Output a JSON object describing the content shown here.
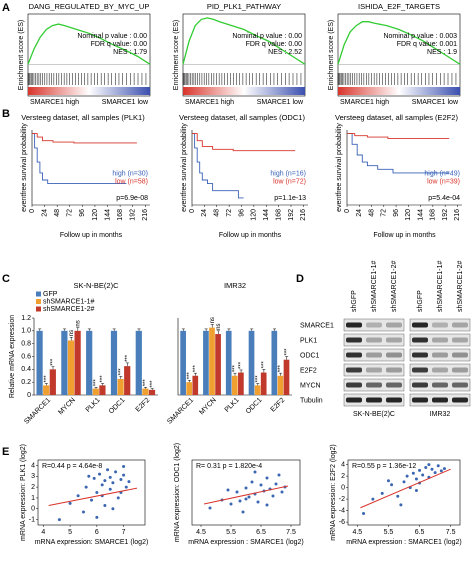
{
  "panel_labels": [
    "A",
    "B",
    "C",
    "D",
    "E"
  ],
  "chart_data": [
    {
      "type": "line",
      "title": "DANG_REGULATED_BY_MYC_UP",
      "y_label": "Enrichment score (ES)",
      "annotations": [
        "Nominal p value : 0.00",
        "FDR q value: 0.00",
        "NES : 1.79"
      ],
      "phenotypes": [
        "SMARCE1 high",
        "SMARCE1 low"
      ],
      "color": "#33cc33",
      "x": [
        0,
        5,
        10,
        15,
        20,
        25,
        30,
        40,
        50,
        60,
        70,
        80,
        90,
        100
      ],
      "values": [
        0,
        0.2,
        0.35,
        0.45,
        0.5,
        0.52,
        0.5,
        0.45,
        0.4,
        0.33,
        0.25,
        0.18,
        0.1,
        0
      ],
      "xlim": [
        0,
        100
      ],
      "ylim": [
        -0.1,
        0.65
      ]
    },
    {
      "type": "line",
      "title": "PID_PLK1_PATHWAY",
      "y_label": "Enrichment score (ES)",
      "annotations": [
        "Nominal p value : 0.00",
        "FDR q value: 0.00",
        "NES : 2.52"
      ],
      "phenotypes": [
        "SMARCE1 high",
        "SMARCE1 low"
      ],
      "color": "#33cc33",
      "x": [
        0,
        5,
        10,
        15,
        20,
        25,
        30,
        40,
        50,
        60,
        70,
        80,
        90,
        100
      ],
      "values": [
        0,
        0.3,
        0.5,
        0.58,
        0.6,
        0.58,
        0.55,
        0.5,
        0.45,
        0.37,
        0.3,
        0.2,
        0.1,
        0
      ],
      "xlim": [
        0,
        100
      ],
      "ylim": [
        -0.1,
        0.65
      ]
    },
    {
      "type": "line",
      "title": "ISHIDA_E2F_TARGETS",
      "y_label": "Enrichment score (ES)",
      "annotations": [
        "Nominal p value : 0.003",
        "FDR q value: 0.001",
        "NES : 1.9"
      ],
      "phenotypes": [
        "SMARCE1 high",
        "SMARCE1 low"
      ],
      "color": "#33cc33",
      "x": [
        0,
        5,
        10,
        15,
        20,
        25,
        30,
        40,
        50,
        60,
        70,
        80,
        90,
        100
      ],
      "values": [
        0,
        0.25,
        0.42,
        0.5,
        0.55,
        0.55,
        0.53,
        0.5,
        0.45,
        0.38,
        0.3,
        0.2,
        0.1,
        0
      ],
      "xlim": [
        0,
        100
      ],
      "ylim": [
        -0.1,
        0.65
      ]
    },
    {
      "type": "step",
      "title": "Versteeg dataset, all samples (PLK1)",
      "y_label": "eventfree survival probability",
      "x_label": "Follow up in months",
      "annotation": "p=6.9e-08",
      "xlim": [
        0,
        225
      ],
      "ylim": [
        0,
        1.05
      ],
      "xticks": [
        0,
        24,
        48,
        72,
        96,
        120,
        144,
        168,
        192,
        216
      ],
      "series": [
        {
          "name": "high (n=30)",
          "color": "#3a62b8",
          "x": [
            0,
            5,
            10,
            15,
            20,
            30,
            40,
            60,
            180
          ],
          "values": [
            1,
            0.8,
            0.6,
            0.45,
            0.35,
            0.3,
            0.3,
            0.3,
            0.3
          ]
        },
        {
          "name": "low (n=58)",
          "color": "#d9342b",
          "x": [
            0,
            10,
            20,
            40,
            80,
            200
          ],
          "values": [
            1,
            0.95,
            0.9,
            0.88,
            0.87,
            0.87
          ]
        }
      ]
    },
    {
      "type": "step",
      "title": "Versteeg dataset, all samples (ODC1)",
      "y_label": "eventfree survival probability",
      "x_label": "Follow up in months",
      "annotation": "p=1.1e-13",
      "xlim": [
        0,
        225
      ],
      "ylim": [
        0,
        1.05
      ],
      "xticks": [
        0,
        24,
        48,
        72,
        96,
        120,
        144,
        168,
        192,
        216
      ],
      "series": [
        {
          "name": "high (n=16)",
          "color": "#3a62b8",
          "x": [
            0,
            5,
            10,
            15,
            20,
            30,
            40,
            60,
            90,
            100
          ],
          "values": [
            1,
            0.8,
            0.6,
            0.45,
            0.35,
            0.3,
            0.2,
            0.2,
            0.1,
            0.1
          ]
        },
        {
          "name": "low (n=72)",
          "color": "#d9342b",
          "x": [
            0,
            10,
            20,
            40,
            80,
            200
          ],
          "values": [
            1,
            0.9,
            0.82,
            0.78,
            0.76,
            0.76
          ]
        }
      ]
    },
    {
      "type": "step",
      "title": "Versteeg dataset, all samples (E2F2)",
      "y_label": "eventfree survival probability",
      "x_label": "Follow up in months",
      "annotation": "p=5.4e-04",
      "xlim": [
        0,
        225
      ],
      "ylim": [
        0,
        1.05
      ],
      "xticks": [
        0,
        24,
        48,
        72,
        96,
        120,
        144,
        168,
        192,
        216
      ],
      "series": [
        {
          "name": "high (n=49)",
          "color": "#3a62b8",
          "x": [
            0,
            10,
            20,
            30,
            40,
            60,
            90,
            200
          ],
          "values": [
            1,
            0.85,
            0.7,
            0.6,
            0.55,
            0.5,
            0.45,
            0.45
          ]
        },
        {
          "name": "low (n=39)",
          "color": "#d9342b",
          "x": [
            0,
            15,
            40,
            80,
            200
          ],
          "values": [
            1,
            0.97,
            0.95,
            0.93,
            0.93
          ]
        }
      ]
    },
    {
      "type": "bar",
      "title": "SK-N-BE(2)C",
      "y_label": "Relative mRNA expression",
      "legend": "top-left",
      "categories": [
        "SMARCE1",
        "MYCN",
        "PLK1",
        "ODC1",
        "E2F2"
      ],
      "ylim": [
        0,
        1.2
      ],
      "yticks": [
        0,
        0.2,
        0.4,
        0.6,
        0.8,
        {
          "value": 1,
          "label": "1.0"
        },
        1.2
      ],
      "series": [
        {
          "name": "GFP",
          "color": "#4a7ebb",
          "values": [
            1,
            1,
            1,
            1,
            1
          ],
          "errors": [
            0.03,
            0.03,
            0.03,
            0.03,
            0.03
          ],
          "significance": [
            null,
            null,
            null,
            null,
            null
          ]
        },
        {
          "name": "shSMARCE1-1#",
          "color": "#f0a030",
          "values": [
            0.15,
            0.85,
            0.1,
            0.25,
            0.1
          ],
          "errors": [
            0.03,
            0.05,
            0.02,
            0.04,
            0.02
          ],
          "significance": [
            "***",
            "ns",
            "***",
            "***",
            "***"
          ]
        },
        {
          "name": "shSMARCE1-2#",
          "color": "#c0392b",
          "values": [
            0.4,
            1.0,
            0.15,
            0.45,
            0.08
          ],
          "errors": [
            0.04,
            0.05,
            0.03,
            0.05,
            0.02
          ],
          "significance": [
            "***",
            "ns",
            "***",
            "***",
            "***"
          ]
        }
      ]
    },
    {
      "type": "bar",
      "title": "IMR32",
      "categories": [
        "SMARCE1",
        "MYCN",
        "PLK1",
        "ODC1",
        "E2F2"
      ],
      "ylim": [
        0,
        1.2
      ],
      "series": [
        {
          "color": "#4a7ebb",
          "values": [
            1,
            1,
            1,
            1,
            1
          ],
          "errors": [
            0.03,
            0.03,
            0.03,
            0.03,
            0.03
          ],
          "significance": [
            null,
            null,
            null,
            null,
            null
          ]
        },
        {
          "color": "#f0a030",
          "values": [
            0.2,
            1.05,
            0.3,
            0.15,
            0.3
          ],
          "errors": [
            0.03,
            0.05,
            0.04,
            0.03,
            0.04
          ],
          "significance": [
            "***",
            "ns",
            "***",
            "***",
            "***"
          ]
        },
        {
          "color": "#c0392b",
          "values": [
            0.3,
            0.95,
            0.35,
            0.35,
            0.55
          ],
          "errors": [
            0.04,
            0.05,
            0.04,
            0.05,
            0.05
          ],
          "significance": [
            "***",
            "ns",
            "***",
            "***",
            "***"
          ]
        }
      ]
    },
    {
      "type": "scatter",
      "annotation": "R=0.44    p = 4.64e-8",
      "x_label": "mRNA expression: SMARCE1 (log2)",
      "y_label": "mRNA expression: PLK1 (log2)",
      "color": "#3b66b0",
      "fit_color": "#d9342b",
      "xlim": [
        3.8,
        7.8
      ],
      "ylim": [
        -1.5,
        4.5
      ],
      "xticks": [
        4,
        5,
        6,
        7
      ],
      "yticks": [
        -1,
        0,
        1,
        2,
        3,
        4
      ],
      "x": [
        5.0,
        5.3,
        5.6,
        5.8,
        5.9,
        6.0,
        6.1,
        6.2,
        6.3,
        6.3,
        6.4,
        6.5,
        6.5,
        6.6,
        6.7,
        6.8,
        6.9,
        7.0,
        7.1,
        7.2,
        5.5,
        6.0,
        6.6,
        6.9,
        4.6,
        5.7,
        6.2,
        7.0
      ],
      "values": [
        0.5,
        1.2,
        2.0,
        0.8,
        2.8,
        1.5,
        3.2,
        2.2,
        0.3,
        2.6,
        3.6,
        1.8,
        2.9,
        2.4,
        3.4,
        1.0,
        2.7,
        3.1,
        2.0,
        2.5,
        -0.3,
        -0.8,
        0.0,
        1.5,
        -1.0,
        3.0,
        1.2,
        3.9
      ],
      "fit": {
        "x": [
          4.2,
          7.5
        ],
        "y": [
          0.3,
          1.9
        ]
      }
    },
    {
      "type": "scatter",
      "annotation": "R= 0.31    p = 1.820e-4",
      "x_label": "mRNA expression : SMARCE1 (log2)",
      "y_label": "mRNA expression: ODC1 (log2)",
      "color": "#3b66b0",
      "fit_color": "#d9342b",
      "xlim": [
        4.2,
        7.8
      ],
      "ylim": [
        2.5,
        9
      ],
      "xticks": [
        4.5,
        5.5,
        6.5,
        7.5
      ],
      "x": [
        4.8,
        5.2,
        5.5,
        5.7,
        5.8,
        6.0,
        6.1,
        6.2,
        6.3,
        6.4,
        6.5,
        6.6,
        6.7,
        6.8,
        6.9,
        7.0,
        7.1,
        7.2,
        5.9,
        6.3,
        6.7,
        7.3,
        5.4,
        6.0
      ],
      "values": [
        4.2,
        5.0,
        4.6,
        5.8,
        4.9,
        6.2,
        5.3,
        6.8,
        5.6,
        4.8,
        6.5,
        5.9,
        7.2,
        6.1,
        5.4,
        6.6,
        7.5,
        5.8,
        3.8,
        7.8,
        4.5,
        6.3,
        6.0,
        5.1
      ],
      "fit": {
        "x": [
          4.6,
          7.4
        ],
        "y": [
          4.6,
          6.4
        ]
      }
    },
    {
      "type": "scatter",
      "annotation": "R=0.55    p = 1.36e-12",
      "x_label": "mRNA expression : SMARCE1 (log2)",
      "y_label": "mRNA expression: E2F2 (log2)",
      "color": "#3b66b0",
      "fit_color": "#d9342b",
      "xlim": [
        4.2,
        7.8
      ],
      "ylim": [
        -6.5,
        4.8
      ],
      "xticks": [
        4.5,
        5.5,
        6.5,
        7.5
      ],
      "yticks": [
        -6,
        -4,
        -2,
        0,
        2,
        4
      ],
      "x": [
        4.7,
        5.0,
        5.3,
        5.6,
        5.8,
        6.0,
        6.1,
        6.2,
        6.3,
        6.4,
        6.5,
        6.5,
        6.6,
        6.7,
        6.8,
        6.9,
        7.0,
        7.1,
        7.2,
        7.3,
        5.9,
        6.4,
        6.8,
        5.5
      ],
      "values": [
        -4.5,
        -2.0,
        -1.0,
        0.5,
        -1.5,
        1.0,
        2.0,
        0.0,
        2.5,
        1.5,
        3.0,
        0.8,
        2.2,
        3.5,
        1.8,
        3.2,
        2.6,
        3.8,
        2.9,
        3.3,
        -3.0,
        -0.5,
        4.0,
        1.2
      ],
      "fit": {
        "x": [
          4.6,
          7.5
        ],
        "y": [
          -3.5,
          3.2
        ]
      }
    }
  ],
  "blot": {
    "proteins": [
      "SMARCE1",
      "PLK1",
      "ODC1",
      "E2F2",
      "MYCN",
      "Tubulin"
    ],
    "lanes": [
      "shGFP",
      "shSMARCE1-1#",
      "shSMARCE1-2#",
      "shGFP",
      "shSMARCE1-1#",
      "shSMARCE1-2#"
    ],
    "cell_lines": [
      "SK-N-BE(2)C",
      "IMR32"
    ]
  }
}
